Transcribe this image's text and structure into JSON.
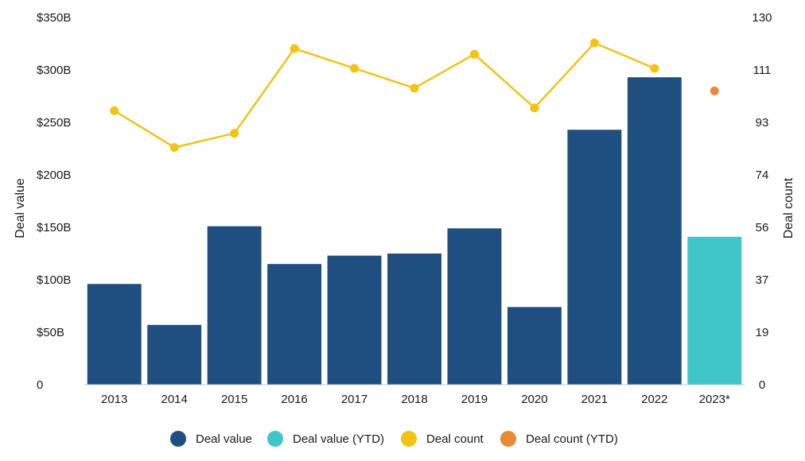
{
  "chart_data": {
    "type": "bar",
    "categories": [
      "2013",
      "2014",
      "2015",
      "2016",
      "2017",
      "2018",
      "2019",
      "2020",
      "2021",
      "2022",
      "2023*"
    ],
    "ylabel": "Deal value",
    "y2label": "Deal count",
    "ylim": [
      0,
      350
    ],
    "y2lim": [
      0,
      130
    ],
    "y_ticks": [
      "0",
      "$50B",
      "$100B",
      "$150B",
      "$200B",
      "$250B",
      "$300B",
      "$350B"
    ],
    "y_tick_values": [
      0,
      50,
      100,
      150,
      200,
      250,
      300,
      350
    ],
    "y2_ticks": [
      "0",
      "19",
      "37",
      "56",
      "74",
      "93",
      "111",
      "130"
    ],
    "y2_tick_values": [
      0,
      18.57,
      37.14,
      55.71,
      74.29,
      92.86,
      111.43,
      130
    ],
    "grid": false,
    "legend_position": "bottom",
    "series": [
      {
        "name": "Deal value",
        "kind": "bar",
        "axis": "left",
        "color": "#1f4e80",
        "values": [
          96,
          57,
          151,
          115,
          123,
          125,
          149,
          74,
          243,
          293,
          null
        ]
      },
      {
        "name": "Deal value (YTD)",
        "kind": "bar",
        "axis": "left",
        "color": "#3ec6c9",
        "values": [
          null,
          null,
          null,
          null,
          null,
          null,
          null,
          null,
          null,
          null,
          141
        ]
      },
      {
        "name": "Deal count",
        "kind": "line",
        "axis": "right",
        "color": "#f2c313",
        "values": [
          97,
          84,
          89,
          119,
          112,
          105,
          117,
          98,
          121,
          112,
          null
        ]
      },
      {
        "name": "Deal count (YTD)",
        "kind": "point",
        "axis": "right",
        "color": "#e88a36",
        "values": [
          null,
          null,
          null,
          null,
          null,
          null,
          null,
          null,
          null,
          null,
          104
        ]
      }
    ]
  }
}
